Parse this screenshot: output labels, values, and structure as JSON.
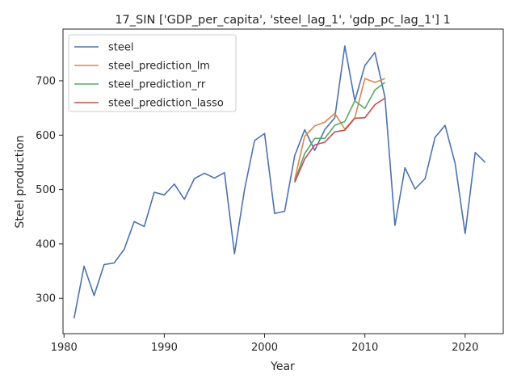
{
  "chart_data": {
    "type": "line",
    "title": "17_SIN ['GDP_per_capita', 'steel_lag_1', 'gdp_pc_lag_1'] 1",
    "xlabel": "Year",
    "ylabel": "Steel production",
    "xlim": [
      1979.9,
      2023.8
    ],
    "ylim": [
      235,
      795
    ],
    "xticks": [
      1980,
      1990,
      2000,
      2010,
      2020
    ],
    "yticks": [
      300,
      400,
      500,
      600,
      700
    ],
    "grid": false,
    "legend_position": "top-left",
    "series": [
      {
        "name": "steel",
        "color": "#4c72b0",
        "x": [
          1981,
          1982,
          1983,
          1984,
          1985,
          1986,
          1987,
          1988,
          1989,
          1990,
          1991,
          1992,
          1993,
          1994,
          1995,
          1996,
          1997,
          1998,
          1999,
          2000,
          2001,
          2002,
          2003,
          2004,
          2005,
          2006,
          2007,
          2008,
          2009,
          2010,
          2011,
          2012,
          2013,
          2014,
          2015,
          2016,
          2017,
          2018,
          2019,
          2020,
          2021,
          2022
        ],
        "values": [
          263,
          359,
          305,
          362,
          365,
          390,
          441,
          432,
          495,
          490,
          510,
          482,
          520,
          530,
          521,
          531,
          382,
          500,
          590,
          603,
          456,
          460,
          562,
          610,
          572,
          610,
          632,
          764,
          663,
          728,
          752,
          670,
          434,
          540,
          501,
          520,
          596,
          618,
          548,
          419,
          568,
          550
        ]
      },
      {
        "name": "steel_prediction_lm",
        "color": "#dd8452",
        "x": [
          2003,
          2004,
          2005,
          2006,
          2007,
          2008,
          2009,
          2010,
          2011,
          2012
        ],
        "values": [
          518,
          598,
          617,
          624,
          640,
          611,
          632,
          704,
          697,
          704
        ]
      },
      {
        "name": "steel_prediction_rr",
        "color": "#55a868",
        "x": [
          2003,
          2004,
          2005,
          2006,
          2007,
          2008,
          2009,
          2010,
          2011,
          2012
        ],
        "values": [
          515,
          566,
          594,
          594,
          618,
          625,
          663,
          649,
          683,
          697
        ]
      },
      {
        "name": "steel_prediction_lasso",
        "color": "#c44e52",
        "x": [
          2003,
          2004,
          2005,
          2006,
          2007,
          2008,
          2009,
          2010,
          2011,
          2012
        ],
        "values": [
          513,
          556,
          582,
          587,
          606,
          609,
          631,
          632,
          656,
          668
        ]
      }
    ]
  }
}
